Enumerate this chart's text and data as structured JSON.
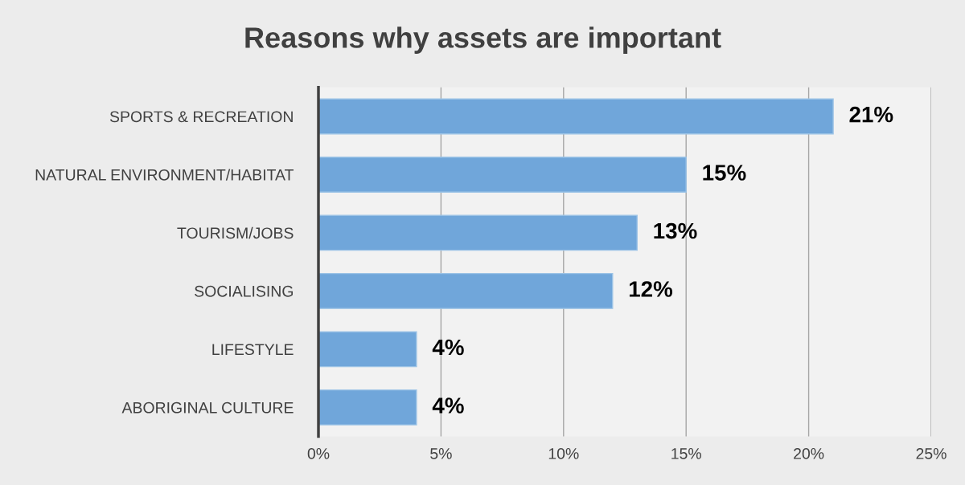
{
  "chart_data": {
    "type": "bar",
    "title": "Reasons why assets are important",
    "orientation": "horizontal",
    "categories": [
      "SPORTS & RECREATION",
      "NATURAL ENVIRONMENT/HABITAT",
      "TOURISM/JOBS",
      "SOCIALISING",
      "LIFESTYLE",
      "ABORIGINAL CULTURE"
    ],
    "values": [
      21,
      15,
      13,
      12,
      4,
      4
    ],
    "value_labels": [
      "21%",
      "15%",
      "13%",
      "12%",
      "4%",
      "4%"
    ],
    "color": "#70a6da",
    "xlim": [
      0,
      25
    ],
    "xticks": [
      {
        "value": 0,
        "label": "0%"
      },
      {
        "value": 5,
        "label": "5%"
      },
      {
        "value": 10,
        "label": "10%"
      },
      {
        "value": 15,
        "label": "15%"
      },
      {
        "value": 20,
        "label": "20%"
      },
      {
        "value": 25,
        "label": "25%"
      }
    ],
    "grid": "x"
  }
}
